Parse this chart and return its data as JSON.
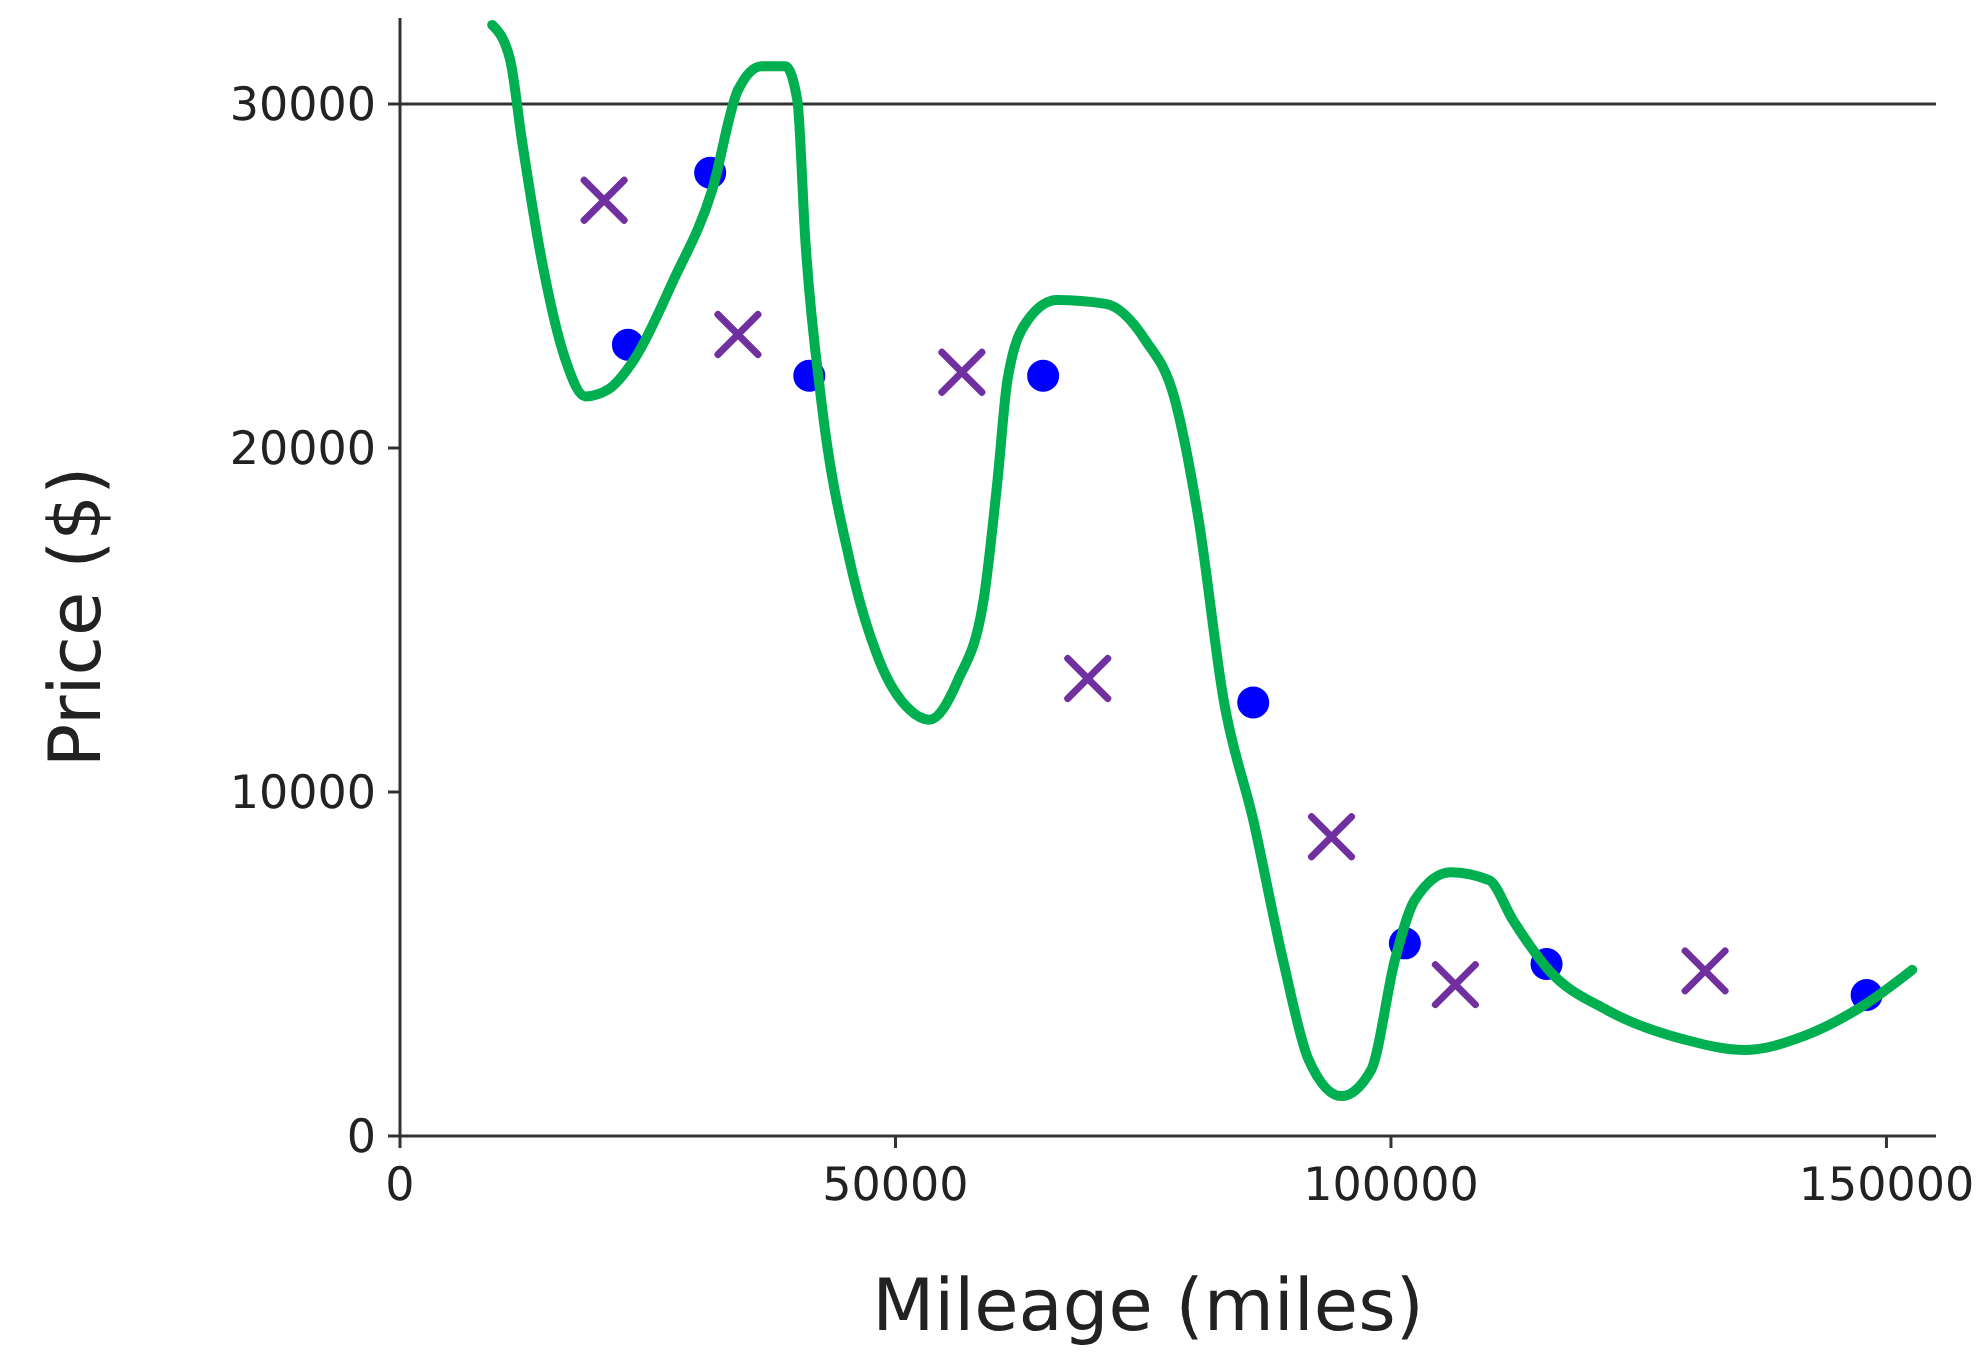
{
  "chart_data": {
    "type": "scatter",
    "xlabel": "Mileage (miles)",
    "ylabel": "Price ($)",
    "xlim": [
      0,
      155000
    ],
    "ylim": [
      0,
      32500
    ],
    "xticks": [
      0,
      50000,
      100000,
      150000
    ],
    "yticks": [
      0,
      10000,
      20000,
      30000
    ],
    "grid": false,
    "ref_lines": [
      {
        "axis": "y",
        "value": 30000,
        "color": "#333333"
      }
    ],
    "series": [
      {
        "marker": "circle",
        "color": "#0000ff",
        "x": [
          23000,
          31300,
          41300,
          64900,
          86100,
          101400,
          115700,
          148000
        ],
        "values": [
          23000,
          28000,
          22100,
          22100,
          12600,
          5600,
          5000,
          4100
        ]
      },
      {
        "marker": "cross",
        "color": "#7030a0",
        "x": [
          20600,
          34100,
          56700,
          69400,
          94000,
          106500,
          131700
        ],
        "values": [
          27200,
          23300,
          22200,
          13300,
          8700,
          4400,
          4800
        ]
      },
      {
        "type": "line",
        "marker": "none",
        "line_style": "solid",
        "color": "#00b050",
        "x": [
          9300,
          11100,
          12300,
          14300,
          16700,
          18700,
          21000,
          23600,
          27600,
          31500,
          34100,
          36500,
          38900,
          40100,
          40900,
          42500,
          45400,
          48400,
          51400,
          53400,
          56300,
          58900,
          60300,
          61300,
          63300,
          66300,
          71200,
          75200,
          78200,
          80600,
          83100,
          86100,
          89100,
          91700,
          95000,
          98000,
          100400,
          102400,
          106000,
          109900,
          112300,
          115900,
          121800,
          129800,
          135700,
          141700,
          147600,
          152600
        ],
        "values": [
          32300,
          31300,
          28950,
          25460,
          22560,
          21500,
          21700,
          22560,
          24880,
          27500,
          30400,
          31100,
          31100,
          30100,
          26050,
          21400,
          16700,
          13800,
          12400,
          12100,
          13250,
          15600,
          19070,
          21980,
          23700,
          24300,
          24190,
          23140,
          21400,
          17900,
          12700,
          9190,
          5120,
          2210,
          1160,
          1920,
          5120,
          6860,
          7670,
          7440,
          6280,
          4830,
          3660,
          2790,
          2500,
          2910,
          3780,
          4830
        ]
      }
    ]
  }
}
